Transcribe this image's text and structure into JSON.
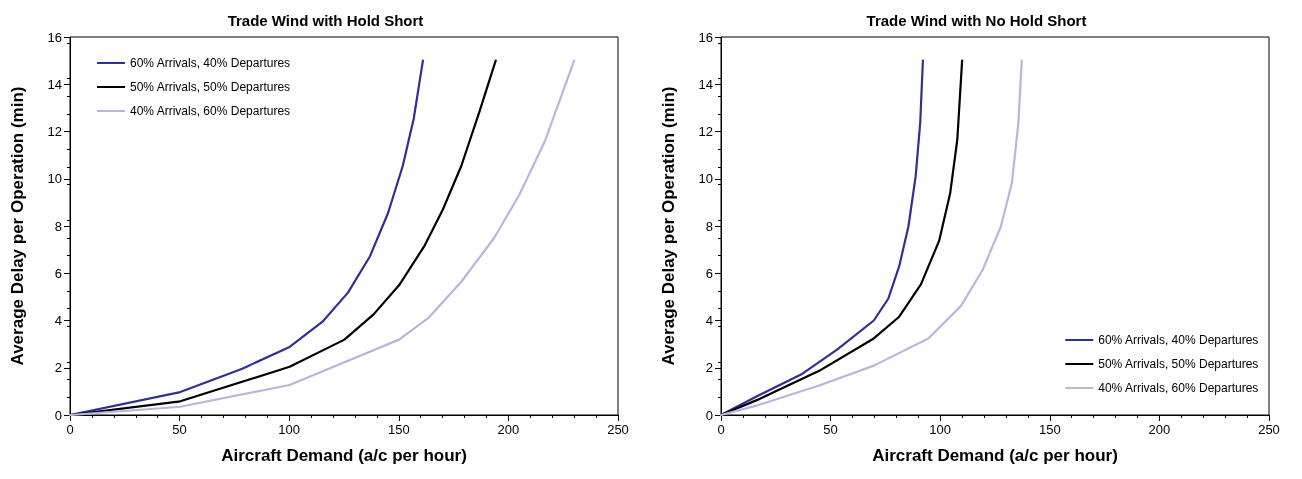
{
  "chart_data": [
    {
      "type": "line",
      "title": "Trade Wind with Hold Short",
      "xlabel": "Aircraft Demand (a/c per hour)",
      "ylabel": "Average Delay per Operation (min)",
      "xlim": [
        0,
        250
      ],
      "xticks": [
        0,
        50,
        100,
        150,
        200,
        250
      ],
      "ylim": [
        0,
        16
      ],
      "yticks": [
        0,
        2,
        4,
        6,
        8,
        10,
        12,
        14,
        16
      ],
      "legend": "top left",
      "marker": "none",
      "line_style": "solid",
      "series": [
        {
          "name": "60% Arrivals, 40% Departures",
          "color": "#2e3192",
          "x": [
            0,
            50.3,
            78.6,
            100.2,
            115.2,
            126.8,
            136.8,
            145.1,
            151.8,
            156.8,
            161
          ],
          "values": [
            0,
            0.97,
            1.96,
            2.88,
            3.95,
            5.18,
            6.71,
            8.55,
            10.54,
            12.54,
            15
          ]
        },
        {
          "name": "50% Arrivals, 50% Departures",
          "color": "#000000",
          "x": [
            0,
            50.3,
            100.2,
            125.2,
            138.5,
            150.1,
            161.8,
            170.1,
            178.5,
            186.8,
            194.2
          ],
          "values": [
            0,
            0.58,
            2.04,
            3.19,
            4.26,
            5.49,
            7.17,
            8.7,
            10.54,
            12.84,
            15
          ]
        },
        {
          "name": "40% Arrivals, 60% Departures",
          "color": "#b9b6dc",
          "x": [
            0,
            50.3,
            100.2,
            150.1,
            163.4,
            178.5,
            193.4,
            205,
            216.7,
            230
          ],
          "values": [
            0,
            0.35,
            1.27,
            3.19,
            4.1,
            5.64,
            7.48,
            9.32,
            11.6,
            15
          ]
        }
      ]
    },
    {
      "type": "line",
      "title": "Trade Wind with No Hold Short",
      "xlabel": "Aircraft Demand (a/c per hour)",
      "ylabel": "Average Delay per Operation (min)",
      "xlim": [
        0,
        250
      ],
      "xticks": [
        0,
        50,
        100,
        150,
        200,
        250
      ],
      "ylim": [
        0,
        16
      ],
      "yticks": [
        0,
        2,
        4,
        6,
        8,
        10,
        12,
        14,
        16
      ],
      "legend": "bottom right",
      "marker": "none",
      "line_style": "solid",
      "series": [
        {
          "name": "60% Arrivals, 40% Departures",
          "color": "#2e3192",
          "x": [
            0,
            16.6,
            36.5,
            53.1,
            69.7,
            76.3,
            81.3,
            85.5,
            88.8,
            90.9,
            92.1
          ],
          "values": [
            0,
            0.8,
            1.71,
            2.78,
            4.0,
            4.92,
            6.3,
            7.98,
            10.1,
            12.4,
            15
          ]
        },
        {
          "name": "50% Arrivals, 50% Departures",
          "color": "#000000",
          "x": [
            0,
            16.6,
            44.8,
            69.7,
            81.3,
            91.2,
            99.5,
            104.5,
            107.8,
            110
          ],
          "values": [
            0,
            0.64,
            1.87,
            3.24,
            4.16,
            5.53,
            7.37,
            9.36,
            11.65,
            15
          ]
        },
        {
          "name": "40% Arrivals, 60% Departures",
          "color": "#b9b6dc",
          "x": [
            0,
            16.6,
            44.8,
            69.7,
            94.6,
            109.5,
            119.4,
            127.7,
            132.7,
            135.7,
            137.2
          ],
          "values": [
            0,
            0.41,
            1.25,
            2.09,
            3.24,
            4.62,
            6.15,
            7.98,
            9.82,
            12.4,
            15
          ]
        }
      ]
    }
  ]
}
